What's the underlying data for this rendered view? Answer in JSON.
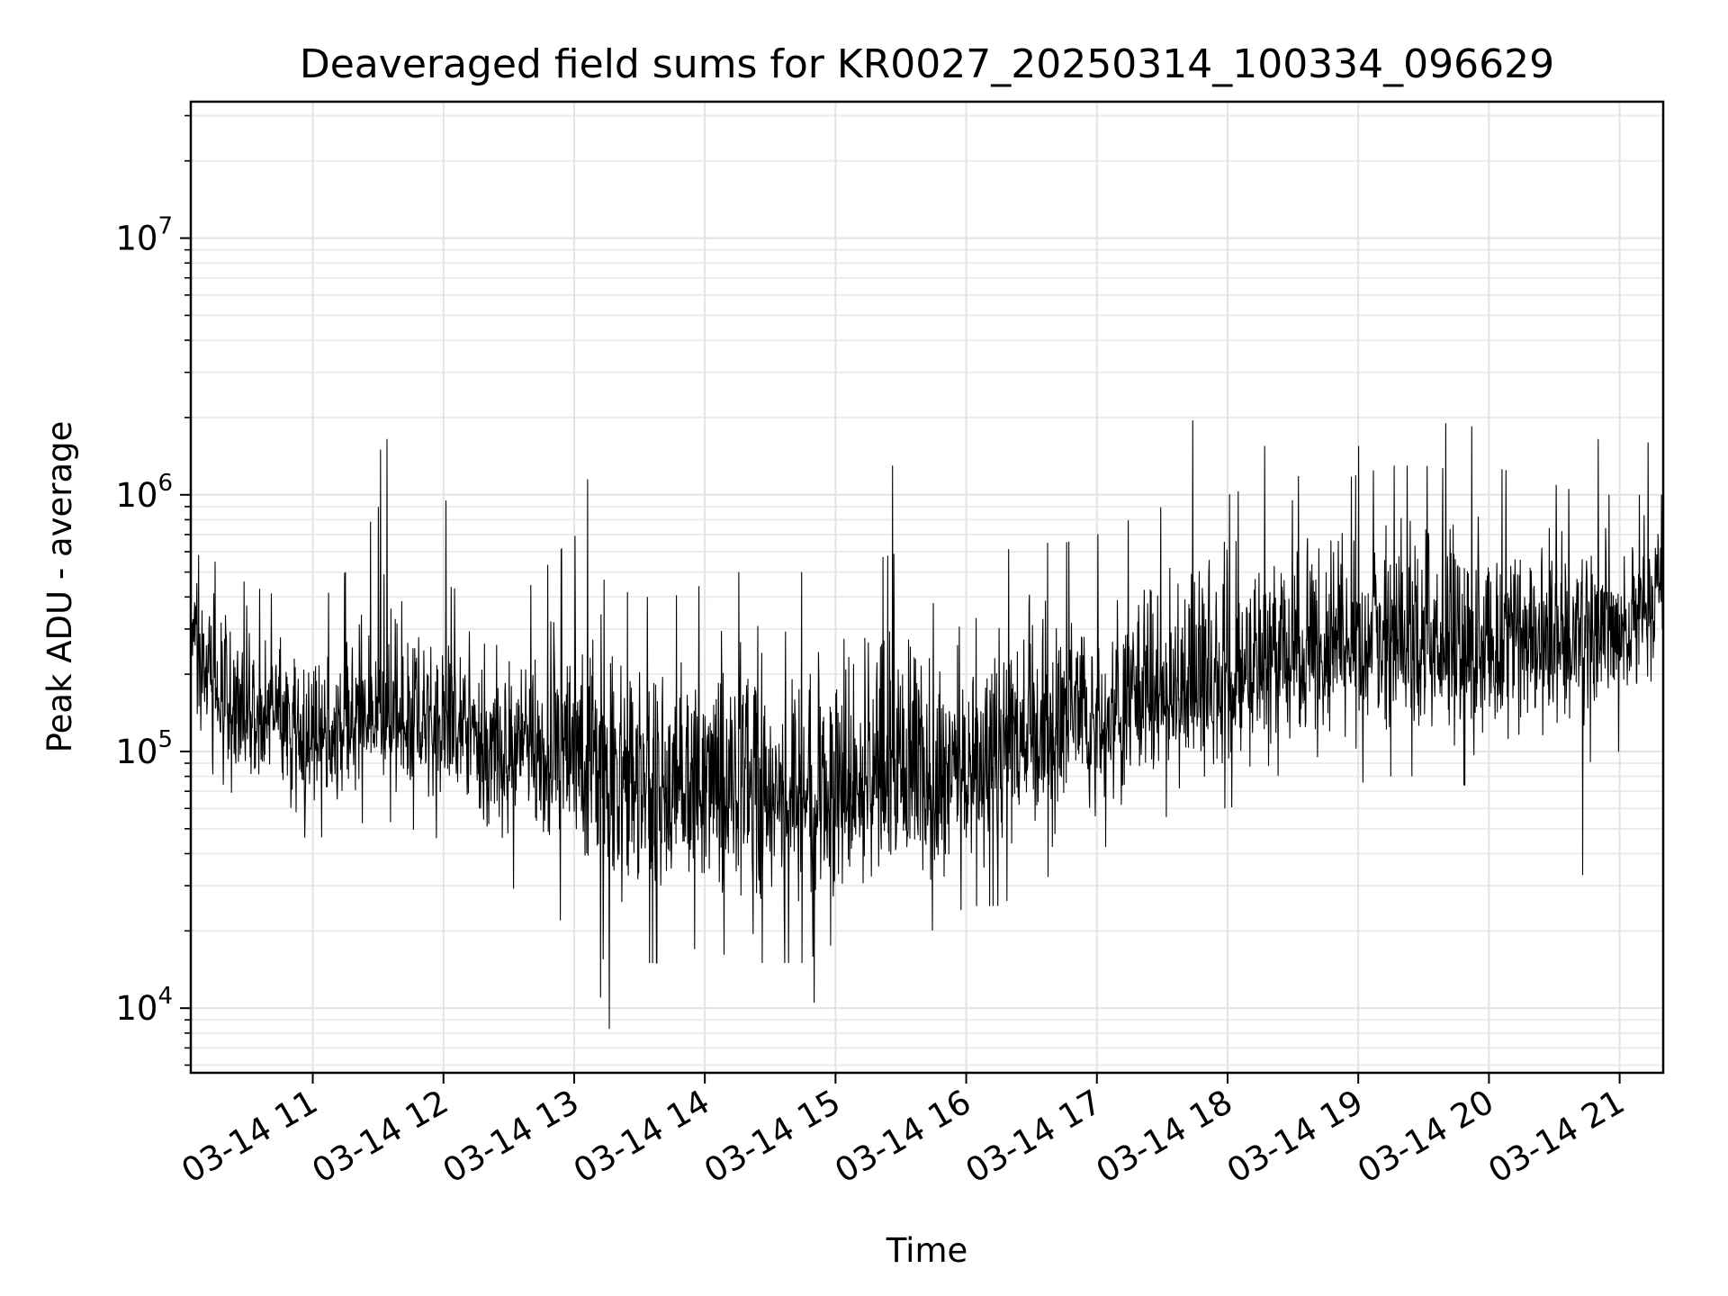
{
  "chart_data": {
    "type": "line",
    "title": "Deaveraged field sums for KR0027_20250314_100334_096629",
    "xlabel": "Time",
    "ylabel": "Peak ADU - average",
    "y_scale": "log",
    "ylim": [
      5600,
      34000000
    ],
    "xlim": [
      "03-14 10:04",
      "03-14 21:20"
    ],
    "grid": "on (major and minor)",
    "line_color": "#000000",
    "x_ticks": [
      {
        "label": "03-14 11",
        "value": "03-14 11:00"
      },
      {
        "label": "03-14 12",
        "value": "03-14 12:00"
      },
      {
        "label": "03-14 13",
        "value": "03-14 13:00"
      },
      {
        "label": "03-14 14",
        "value": "03-14 14:00"
      },
      {
        "label": "03-14 15",
        "value": "03-14 15:00"
      },
      {
        "label": "03-14 16",
        "value": "03-14 16:00"
      },
      {
        "label": "03-14 17",
        "value": "03-14 17:00"
      },
      {
        "label": "03-14 18",
        "value": "03-14 18:00"
      },
      {
        "label": "03-14 19",
        "value": "03-14 19:00"
      },
      {
        "label": "03-14 20",
        "value": "03-14 20:00"
      },
      {
        "label": "03-14 21",
        "value": "03-14 21:00"
      }
    ],
    "y_ticks": [
      {
        "base": "10",
        "exp": "4",
        "value": 10000
      },
      {
        "base": "10",
        "exp": "5",
        "value": 100000
      },
      {
        "base": "10",
        "exp": "6",
        "value": 1000000
      },
      {
        "base": "10",
        "exp": "7",
        "value": 10000000
      }
    ],
    "series": [
      {
        "x": [
          "03-14 10:04",
          "03-14 10:15",
          "03-14 10:30",
          "03-14 10:45",
          "03-14 11:00",
          "03-14 11:15",
          "03-14 11:30",
          "03-14 11:45",
          "03-14 12:00",
          "03-14 12:15",
          "03-14 12:30",
          "03-14 12:45",
          "03-14 13:00",
          "03-14 13:15",
          "03-14 13:30",
          "03-14 13:45",
          "03-14 14:00",
          "03-14 14:15",
          "03-14 14:30",
          "03-14 14:45",
          "03-14 15:00",
          "03-14 15:15",
          "03-14 15:30",
          "03-14 15:45",
          "03-14 16:00",
          "03-14 16:15",
          "03-14 16:30",
          "03-14 16:45",
          "03-14 17:00",
          "03-14 17:15",
          "03-14 17:30",
          "03-14 17:45",
          "03-14 18:00",
          "03-14 18:15",
          "03-14 18:30",
          "03-14 18:45",
          "03-14 19:00",
          "03-14 19:15",
          "03-14 19:30",
          "03-14 19:45",
          "03-14 20:00",
          "03-14 20:15",
          "03-14 20:30",
          "03-14 20:45",
          "03-14 21:00",
          "03-14 21:20"
        ],
        "typical": [
          250000,
          180000,
          130000,
          120000,
          115000,
          125000,
          135000,
          130000,
          125000,
          115000,
          105000,
          100000,
          95000,
          85000,
          75000,
          70000,
          70000,
          75000,
          72000,
          68000,
          70000,
          75000,
          78000,
          75000,
          85000,
          95000,
          105000,
          115000,
          130000,
          140000,
          150000,
          165000,
          180000,
          200000,
          220000,
          240000,
          250000,
          250000,
          245000,
          250000,
          255000,
          260000,
          265000,
          270000,
          290000,
          450000
        ],
        "low": [
          100000,
          80000,
          60000,
          50000,
          45000,
          50000,
          55000,
          50000,
          45000,
          40000,
          30000,
          25000,
          20000,
          15000,
          15000,
          15000,
          18000,
          15000,
          15000,
          15000,
          18000,
          20000,
          22000,
          20000,
          25000,
          25000,
          30000,
          35000,
          40000,
          50000,
          55000,
          60000,
          60000,
          65000,
          65000,
          70000,
          75000,
          80000,
          80000,
          75000,
          70000,
          80000,
          85000,
          90000,
          100000,
          150000
        ],
        "high": [
          600000,
          550000,
          450000,
          400000,
          350000,
          500000,
          900000,
          600000,
          450000,
          400000,
          350000,
          500000,
          700000,
          450000,
          400000,
          400000,
          450000,
          500000,
          500000,
          500000,
          500000,
          550000,
          600000,
          550000,
          550000,
          600000,
          650000,
          650000,
          700000,
          800000,
          900000,
          1000000,
          1000000,
          1100000,
          1200000,
          1100000,
          1200000,
          1300000,
          1300000,
          1250000,
          1300000,
          1200000,
          1100000,
          1000000,
          1000000,
          1000000
        ],
        "spikes": [
          {
            "x": "03-14 11:31",
            "y": 1500000
          },
          {
            "x": "03-14 11:34",
            "y": 1650000
          },
          {
            "x": "03-14 12:01",
            "y": 950000
          },
          {
            "x": "03-14 13:06",
            "y": 1150000
          },
          {
            "x": "03-14 13:12",
            "y": 11000
          },
          {
            "x": "03-14 13:16",
            "y": 8300
          },
          {
            "x": "03-14 14:50",
            "y": 10500
          },
          {
            "x": "03-14 15:26",
            "y": 1300000
          },
          {
            "x": "03-14 17:44",
            "y": 1950000
          },
          {
            "x": "03-14 18:17",
            "y": 1550000
          },
          {
            "x": "03-14 19:00",
            "y": 1550000
          },
          {
            "x": "03-14 19:40",
            "y": 1900000
          },
          {
            "x": "03-14 19:52",
            "y": 1850000
          },
          {
            "x": "03-14 20:43",
            "y": 33000
          },
          {
            "x": "03-14 20:50",
            "y": 1650000
          },
          {
            "x": "03-14 21:13",
            "y": 1600000
          }
        ]
      }
    ]
  }
}
